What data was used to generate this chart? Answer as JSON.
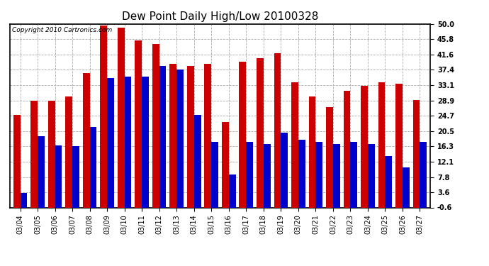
{
  "title": "Dew Point Daily High/Low 20100328",
  "copyright": "Copyright 2010 Cartronics.com",
  "dates": [
    "03/04",
    "03/05",
    "03/06",
    "03/07",
    "03/08",
    "03/09",
    "03/10",
    "03/11",
    "03/12",
    "03/13",
    "03/14",
    "03/15",
    "03/16",
    "03/17",
    "03/18",
    "03/19",
    "03/20",
    "03/21",
    "03/22",
    "03/23",
    "03/24",
    "03/25",
    "03/26",
    "03/27"
  ],
  "highs": [
    25.0,
    28.9,
    28.9,
    30.0,
    36.5,
    49.5,
    49.0,
    45.5,
    44.5,
    39.0,
    38.5,
    39.0,
    23.0,
    39.5,
    40.5,
    42.0,
    34.0,
    30.0,
    27.0,
    31.5,
    33.0,
    34.0,
    33.5,
    29.0
  ],
  "lows": [
    3.5,
    19.0,
    16.5,
    16.3,
    21.5,
    35.0,
    35.5,
    35.5,
    38.5,
    37.5,
    25.0,
    17.5,
    8.5,
    17.5,
    17.0,
    20.0,
    18.0,
    17.5,
    17.0,
    17.5,
    17.0,
    13.5,
    10.5,
    17.5
  ],
  "high_color": "#cc0000",
  "low_color": "#0000cc",
  "ylim_min": -0.6,
  "ylim_max": 50.0,
  "yticks": [
    -0.6,
    3.6,
    7.8,
    12.1,
    16.3,
    20.5,
    24.7,
    28.9,
    33.1,
    37.4,
    41.6,
    45.8,
    50.0
  ],
  "ytick_labels": [
    "-0.6",
    "3.6",
    "7.8",
    "12.1",
    "16.3",
    "20.5",
    "24.7",
    "28.9",
    "33.1",
    "37.4",
    "41.6",
    "45.8",
    "50.0"
  ],
  "background_color": "#ffffff",
  "grid_color": "#aaaaaa",
  "bar_width": 0.4,
  "title_fontsize": 11,
  "tick_fontsize": 7,
  "copyright_fontsize": 6.5
}
